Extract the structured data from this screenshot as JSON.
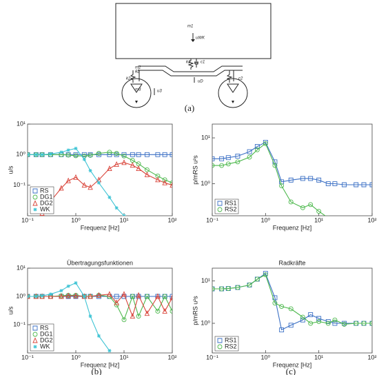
{
  "diagram": {
    "labels": [
      "m1",
      "uWK",
      "k1",
      "c1",
      "m2",
      "θ2",
      "k2",
      "c2",
      "uD",
      "m3",
      "u3"
    ]
  },
  "panel_labels": [
    "(a)",
    "(b)",
    "(c)"
  ],
  "chart_data": [
    {
      "type": "line",
      "log_x": true,
      "log_y": true,
      "xlabel": "Frequenz [Hz]",
      "ylabel": "u/s",
      "legend": "lower left",
      "xlim": [
        0.1,
        100
      ],
      "xticks": [
        {
          "value": 0.1,
          "label": "10⁻¹"
        },
        {
          "value": 1,
          "label": "10⁰"
        },
        {
          "value": 10,
          "label": "10¹"
        },
        {
          "value": 100,
          "label": "10²"
        }
      ],
      "ylim": [
        0.01,
        10
      ],
      "yticks": [
        {
          "value": 0.1,
          "label": "10⁻¹"
        },
        {
          "value": 1,
          "label": "10⁰"
        },
        {
          "value": 10,
          "label": "10¹"
        }
      ],
      "x": [
        0.1,
        0.15,
        0.2,
        0.3,
        0.5,
        0.7,
        1,
        1.5,
        2,
        3,
        5,
        7,
        10,
        15,
        20,
        30,
        50,
        70,
        100
      ],
      "series": [
        {
          "name": "RS",
          "color": "#3a6fc4",
          "marker": "square",
          "values": [
            1,
            1,
            1,
            1,
            1,
            1,
            1,
            1,
            1,
            1,
            1,
            1,
            1,
            1,
            1,
            1,
            1,
            1,
            1
          ]
        },
        {
          "name": "DG1",
          "color": "#4cb84c",
          "marker": "circle",
          "values": [
            1,
            1,
            1,
            1,
            1,
            0.97,
            0.92,
            0.9,
            0.95,
            1.1,
            1.2,
            1.1,
            0.9,
            0.65,
            0.5,
            0.32,
            0.2,
            0.15,
            0.12
          ]
        },
        {
          "name": "DG2",
          "color": "#d9443a",
          "marker": "triangle",
          "values": [
            null,
            null,
            0.012,
            0.03,
            0.08,
            0.14,
            0.18,
            0.1,
            0.085,
            0.15,
            0.35,
            0.48,
            0.55,
            0.45,
            0.35,
            0.22,
            0.15,
            0.12,
            0.1
          ]
        },
        {
          "name": "WK",
          "color": "#3cc3d4",
          "marker": "star",
          "values": [
            1,
            1,
            1,
            1.05,
            1.2,
            1.4,
            1.6,
            0.7,
            0.3,
            0.12,
            0.04,
            0.018,
            0.01,
            null,
            null,
            null,
            null,
            null,
            null
          ]
        }
      ]
    },
    {
      "type": "line",
      "log_x": true,
      "log_y": true,
      "xlabel": "Frequenz [Hz]",
      "ylabel": "p/mRS u²s",
      "legend": "lower left",
      "xlim": [
        0.1,
        100
      ],
      "xticks": [
        {
          "value": 0.1,
          "label": "10⁻¹"
        },
        {
          "value": 1,
          "label": "10⁰"
        },
        {
          "value": 10,
          "label": "10¹"
        },
        {
          "value": 100,
          "label": "10²"
        }
      ],
      "ylim": [
        0.2,
        20
      ],
      "yticks": [
        {
          "value": 1,
          "label": "10⁰"
        },
        {
          "value": 10,
          "label": "10¹"
        }
      ],
      "x": [
        0.1,
        0.15,
        0.2,
        0.3,
        0.5,
        0.7,
        1,
        1.5,
        2,
        3,
        5,
        7,
        10,
        15,
        20,
        30,
        50,
        70,
        100
      ],
      "series": [
        {
          "name": "RS1",
          "color": "#3a6fc4",
          "marker": "square",
          "values": [
            3.5,
            3.5,
            3.7,
            4,
            5,
            6.5,
            8,
            3,
            1.1,
            1.2,
            1.3,
            1.3,
            1.2,
            1,
            1,
            0.95,
            0.95,
            0.95,
            0.95
          ]
        },
        {
          "name": "RS2",
          "color": "#4cb84c",
          "marker": "circle",
          "values": [
            2.5,
            2.5,
            2.7,
            3,
            3.8,
            5.5,
            7.5,
            2.5,
            0.9,
            0.4,
            0.3,
            0.35,
            0.25,
            0.18,
            null,
            null,
            null,
            null,
            null
          ]
        }
      ]
    },
    {
      "type": "line",
      "log_x": true,
      "log_y": true,
      "title": "Übertragungsfunktionen",
      "xlabel": "Frequenz [Hz]",
      "ylabel": "u/s",
      "legend": "lower left",
      "xlim": [
        0.1,
        100
      ],
      "xticks": [
        {
          "value": 0.1,
          "label": "10⁻¹"
        },
        {
          "value": 1,
          "label": "10⁰"
        },
        {
          "value": 10,
          "label": "10¹"
        },
        {
          "value": 100,
          "label": "10²"
        }
      ],
      "ylim": [
        0.01,
        10
      ],
      "yticks": [
        {
          "value": 0.1,
          "label": "10⁻¹"
        },
        {
          "value": 1,
          "label": "10⁰"
        },
        {
          "value": 10,
          "label": "10¹"
        }
      ],
      "x": [
        0.1,
        0.15,
        0.2,
        0.3,
        0.5,
        0.7,
        1,
        1.5,
        2,
        3,
        5,
        7,
        10,
        15,
        20,
        30,
        50,
        70,
        100
      ],
      "series": [
        {
          "name": "RS",
          "color": "#3a6fc4",
          "marker": "square",
          "values": [
            1,
            1,
            1,
            1,
            1,
            1,
            1,
            1,
            1,
            1,
            1,
            1,
            1,
            1,
            1,
            1,
            1,
            1,
            1
          ]
        },
        {
          "name": "DG1",
          "color": "#4cb84c",
          "marker": "circle",
          "values": [
            1,
            1,
            1,
            1,
            1.05,
            1.1,
            1.1,
            1,
            1,
            1.1,
            1,
            0.5,
            0.15,
            1,
            0.2,
            1,
            0.3,
            1,
            0.3
          ]
        },
        {
          "name": "DG2",
          "color": "#d9443a",
          "marker": "triangle",
          "values": [
            1,
            1,
            1,
            1,
            1,
            1.05,
            1.05,
            1,
            1,
            1.1,
            1.2,
            0.6,
            1.2,
            0.2,
            1.1,
            0.25,
            1,
            0.3,
            0.9
          ]
        },
        {
          "name": "WK",
          "color": "#3cc3d4",
          "marker": "star",
          "values": [
            1,
            1,
            1.05,
            1.2,
            1.6,
            2.3,
            3,
            1,
            0.2,
            0.04,
            0.012,
            null,
            null,
            null,
            null,
            null,
            null,
            null,
            null
          ]
        }
      ]
    },
    {
      "type": "line",
      "log_x": true,
      "log_y": true,
      "title": "Radkräfte",
      "xlabel": "Frequenz [Hz]",
      "ylabel": "p/mRS u²s",
      "legend": "lower left",
      "xlim": [
        0.1,
        100
      ],
      "xticks": [
        {
          "value": 0.1,
          "label": "10⁻¹"
        },
        {
          "value": 1,
          "label": "10⁰"
        },
        {
          "value": 10,
          "label": "10¹"
        },
        {
          "value": 100,
          "label": "10²"
        }
      ],
      "ylim": [
        0.2,
        20
      ],
      "yticks": [
        {
          "value": 1,
          "label": "10⁰"
        },
        {
          "value": 10,
          "label": "10¹"
        }
      ],
      "x": [
        0.1,
        0.15,
        0.2,
        0.3,
        0.5,
        0.7,
        1,
        1.5,
        2,
        3,
        5,
        7,
        10,
        15,
        20,
        30,
        50,
        70,
        100
      ],
      "series": [
        {
          "name": "RS1",
          "color": "#3a6fc4",
          "marker": "square",
          "values": [
            6.5,
            6.5,
            6.6,
            7,
            8,
            11,
            15,
            4,
            0.7,
            0.9,
            1.2,
            1.6,
            1.3,
            1.1,
            1,
            1,
            1,
            1,
            1
          ]
        },
        {
          "name": "RS2",
          "color": "#4cb84c",
          "marker": "circle",
          "values": [
            6.5,
            6.5,
            6.6,
            7,
            8,
            11,
            14,
            3,
            2.5,
            2.2,
            1.4,
            1,
            1.1,
            1,
            1.2,
            0.95,
            1,
            1,
            1
          ]
        }
      ]
    }
  ]
}
